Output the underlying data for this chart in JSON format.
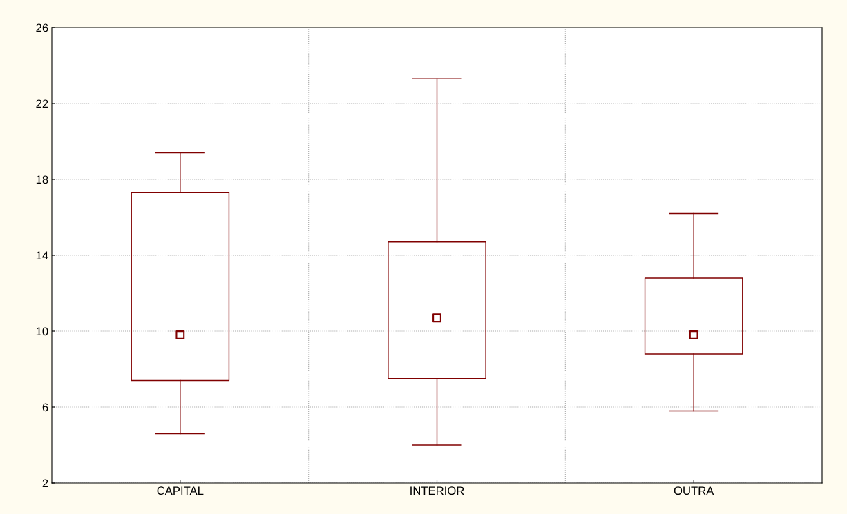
{
  "chart_data": {
    "type": "box",
    "categories": [
      "CAPITAL",
      "INTERIOR",
      "OUTRA"
    ],
    "boxes": [
      {
        "low": 4.6,
        "q1": 7.4,
        "median": 9.8,
        "q3": 17.3,
        "high": 19.4
      },
      {
        "low": 4.0,
        "q1": 7.5,
        "median": 10.7,
        "q3": 14.7,
        "high": 23.3
      },
      {
        "low": 5.8,
        "q1": 8.8,
        "median": 9.8,
        "q3": 12.8,
        "high": 16.2
      }
    ],
    "color": "#800000",
    "marker": "square",
    "ylim": [
      2,
      26
    ],
    "yticks": [
      2,
      6,
      10,
      14,
      18,
      22,
      26
    ],
    "grid": true
  }
}
